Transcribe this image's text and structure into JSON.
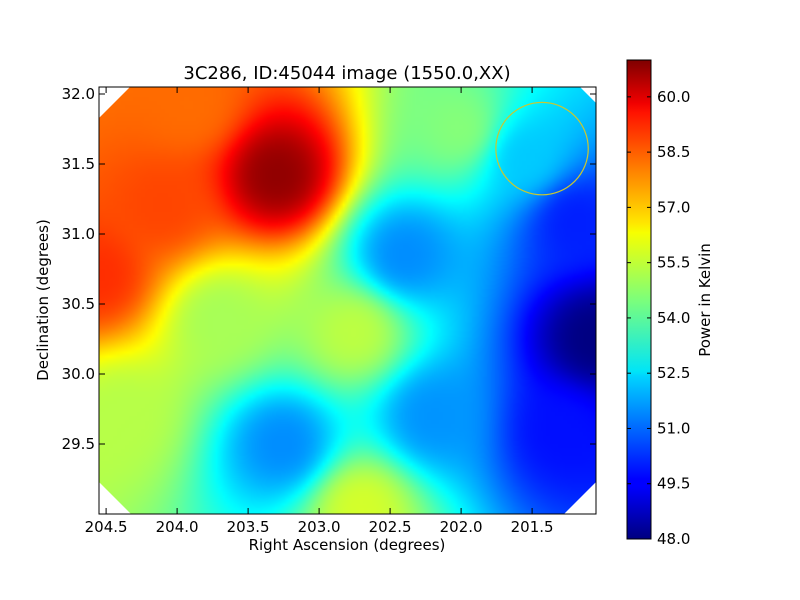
{
  "chart_data": {
    "type": "heatmap",
    "title": "3C286, ID:45044 image (1550.0,XX)",
    "xlabel": "Right Ascension (degrees)",
    "ylabel": "Declination (degrees)",
    "colorbar_label": "Power in Kelvin",
    "xlim": [
      204.55,
      201.05
    ],
    "ylim": [
      29.0,
      32.05
    ],
    "x_ticks": [
      {
        "value": 204.5,
        "label": "204.5"
      },
      {
        "value": 204.0,
        "label": "204.0"
      },
      {
        "value": 203.5,
        "label": "203.5"
      },
      {
        "value": 203.0,
        "label": "203.0"
      },
      {
        "value": 202.5,
        "label": "202.5"
      },
      {
        "value": 202.0,
        "label": "202.0"
      },
      {
        "value": 201.5,
        "label": "201.5"
      }
    ],
    "y_ticks": [
      {
        "value": 32.0,
        "label": "32.0"
      },
      {
        "value": 31.5,
        "label": "31.5"
      },
      {
        "value": 31.0,
        "label": "31.0"
      },
      {
        "value": 30.5,
        "label": "30.5"
      },
      {
        "value": 30.0,
        "label": "30.0"
      },
      {
        "value": 29.5,
        "label": "29.5"
      }
    ],
    "colorbar_range": [
      48.0,
      61.0
    ],
    "colorbar_ticks": [
      {
        "value": 60.0,
        "label": "60.0"
      },
      {
        "value": 58.5,
        "label": "58.5"
      },
      {
        "value": 57.0,
        "label": "57.0"
      },
      {
        "value": 55.5,
        "label": "55.5"
      },
      {
        "value": 54.0,
        "label": "54.0"
      },
      {
        "value": 52.5,
        "label": "52.5"
      },
      {
        "value": 51.0,
        "label": "51.0"
      },
      {
        "value": 49.5,
        "label": "49.5"
      },
      {
        "value": 48.0,
        "label": "48.0"
      }
    ],
    "colormap": "jet",
    "grid": false,
    "field_features": [
      {
        "ra": 203.3,
        "dec": 31.42,
        "power": 60.8
      },
      {
        "ra": 204.55,
        "dec": 30.7,
        "power": 58.8
      },
      {
        "ra": 204.1,
        "dec": 31.2,
        "power": 58.5
      },
      {
        "ra": 203.9,
        "dec": 31.9,
        "power": 58.0
      },
      {
        "ra": 204.4,
        "dec": 29.7,
        "power": 55.2
      },
      {
        "ra": 203.7,
        "dec": 30.4,
        "power": 55.0
      },
      {
        "ra": 202.75,
        "dec": 30.3,
        "power": 55.3
      },
      {
        "ra": 202.7,
        "dec": 29.05,
        "power": 55.6
      },
      {
        "ra": 202.0,
        "dec": 31.75,
        "power": 54.6
      },
      {
        "ra": 202.4,
        "dec": 30.85,
        "power": 51.4
      },
      {
        "ra": 203.25,
        "dec": 29.5,
        "power": 51.4
      },
      {
        "ra": 202.2,
        "dec": 29.7,
        "power": 51.5
      },
      {
        "ra": 201.55,
        "dec": 31.55,
        "power": 52.2
      },
      {
        "ra": 201.05,
        "dec": 30.25,
        "power": 48.0
      },
      {
        "ra": 201.3,
        "dec": 29.6,
        "power": 49.8
      },
      {
        "ra": 201.2,
        "dec": 31.1,
        "power": 50.0
      }
    ],
    "overlay_circle": {
      "ra": 201.43,
      "dec": 31.61,
      "radius_deg": 0.33,
      "color": "#c8c832"
    }
  }
}
